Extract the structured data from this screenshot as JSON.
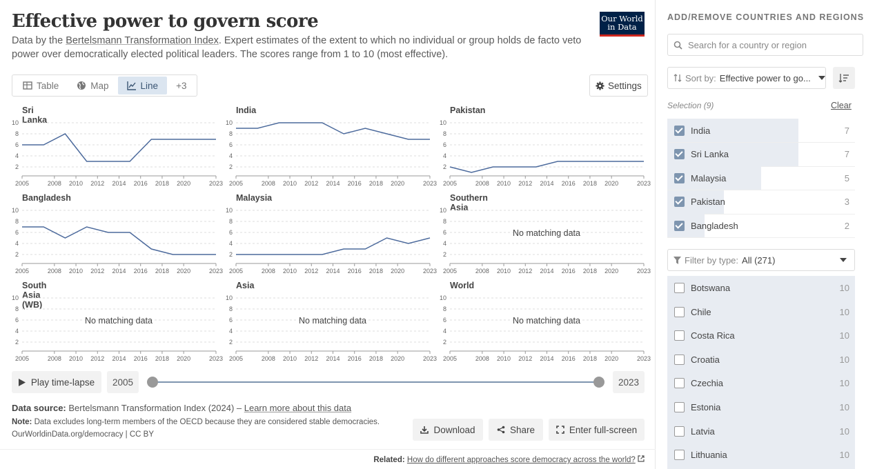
{
  "header": {
    "title": "Effective power to govern score",
    "subtitle_pre": "Data by the ",
    "subtitle_link": "Bertelsmann Transformation Index",
    "subtitle_post": ". Expert estimates of the extent to which no individual or group holds de facto veto power over democratically elected political leaders. The scores range from 1 to 10 (most effective).",
    "logo_line1": "Our World",
    "logo_line2": "in Data"
  },
  "tabs": [
    {
      "label": "Table",
      "icon": "table-icon"
    },
    {
      "label": "Map",
      "icon": "globe-icon"
    },
    {
      "label": "Line",
      "icon": "line-chart-icon",
      "active": true
    },
    {
      "label": "+3"
    }
  ],
  "settings_label": "Settings",
  "chart_data": {
    "type": "line",
    "layout": "small-multiples",
    "ylim": [
      1,
      10
    ],
    "yticks": [
      2,
      4,
      6,
      8,
      10
    ],
    "xlim": [
      2005,
      2023
    ],
    "xticks": [
      2005,
      2008,
      2010,
      2012,
      2014,
      2016,
      2018,
      2020,
      2023
    ],
    "line_color": "#4c6a9c",
    "no_data_text": "No matching data",
    "facets": [
      {
        "name": "Sri Lanka",
        "x": [
          2005,
          2007,
          2009,
          2011,
          2013,
          2015,
          2017,
          2019,
          2021,
          2023
        ],
        "y": [
          6,
          6,
          8,
          3,
          3,
          3,
          7,
          7,
          7,
          7
        ]
      },
      {
        "name": "India",
        "x": [
          2005,
          2007,
          2009,
          2011,
          2013,
          2015,
          2017,
          2019,
          2021,
          2023
        ],
        "y": [
          9,
          9,
          10,
          10,
          10,
          8,
          9,
          8,
          7,
          7
        ]
      },
      {
        "name": "Pakistan",
        "x": [
          2005,
          2007,
          2009,
          2011,
          2013,
          2015,
          2017,
          2019,
          2021,
          2023
        ],
        "y": [
          2,
          1,
          2,
          2,
          2,
          3,
          3,
          3,
          3,
          3
        ]
      },
      {
        "name": "Bangladesh",
        "x": [
          2005,
          2007,
          2009,
          2011,
          2013,
          2015,
          2017,
          2019,
          2021,
          2023
        ],
        "y": [
          7,
          7,
          5,
          7,
          6,
          6,
          3,
          2,
          2,
          2
        ]
      },
      {
        "name": "Malaysia",
        "x": [
          2005,
          2007,
          2009,
          2011,
          2013,
          2015,
          2017,
          2019,
          2021,
          2023
        ],
        "y": [
          2,
          2,
          2,
          2,
          2,
          3,
          3,
          5,
          4,
          5
        ]
      },
      {
        "name": "Southern Asia",
        "x": [],
        "y": []
      },
      {
        "name": "South Asia (WB)",
        "x": [],
        "y": []
      },
      {
        "name": "Asia",
        "x": [],
        "y": []
      },
      {
        "name": "World",
        "x": [],
        "y": []
      }
    ]
  },
  "timeline": {
    "play_label": "Play time-lapse",
    "start_year": "2005",
    "end_year": "2023"
  },
  "footer": {
    "source_label": "Data source:",
    "source_text": "Bertelsmann Transformation Index (2024) – ",
    "source_link": "Learn more about this data",
    "note_label": "Note:",
    "note_text": "Data excludes long-term members of the OECD because they are considered stable democracies.",
    "url": "OurWorldinData.org/democracy | CC BY",
    "download_label": "Download",
    "share_label": "Share",
    "fullscreen_label": "Enter full-screen",
    "related_label": "Related:",
    "related_link": "How do different approaches score democracy across the world?"
  },
  "sidebar": {
    "title": "ADD/REMOVE COUNTRIES AND REGIONS",
    "search_placeholder": "Search for a country or region",
    "sort_label": "Sort by:",
    "sort_value": "Effective power to go...",
    "selection_label": "Selection (9)",
    "clear_label": "Clear",
    "selected": [
      {
        "name": "India",
        "value": "7",
        "frac": 0.7
      },
      {
        "name": "Sri Lanka",
        "value": "7",
        "frac": 0.7
      },
      {
        "name": "Malaysia",
        "value": "5",
        "frac": 0.5
      },
      {
        "name": "Pakistan",
        "value": "3",
        "frac": 0.3
      },
      {
        "name": "Bangladesh",
        "value": "2",
        "frac": 0.2
      }
    ],
    "filter_label": "Filter by type:",
    "filter_value": "All (271)",
    "available": [
      {
        "name": "Botswana",
        "value": "10"
      },
      {
        "name": "Chile",
        "value": "10"
      },
      {
        "name": "Costa Rica",
        "value": "10"
      },
      {
        "name": "Croatia",
        "value": "10"
      },
      {
        "name": "Czechia",
        "value": "10"
      },
      {
        "name": "Estonia",
        "value": "10"
      },
      {
        "name": "Latvia",
        "value": "10"
      },
      {
        "name": "Lithuania",
        "value": "10"
      }
    ]
  }
}
